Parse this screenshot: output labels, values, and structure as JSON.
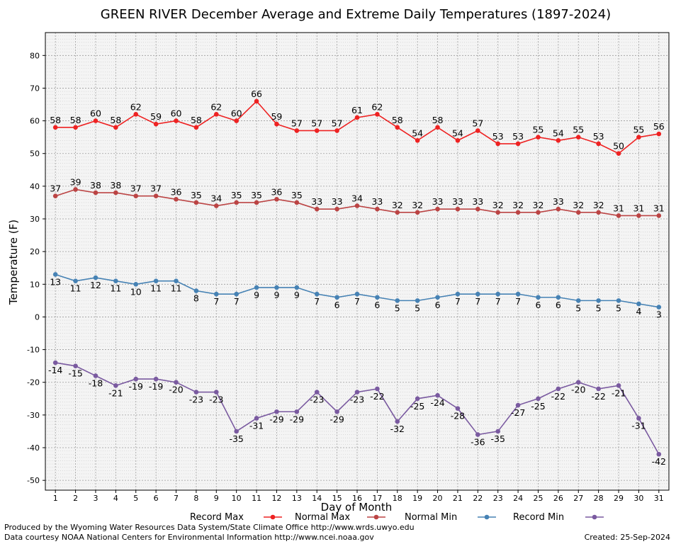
{
  "chart_data": {
    "type": "line",
    "title": "GREEN RIVER December Average and Extreme Daily Temperatures (1897-2024)",
    "xlabel": "Day of Month",
    "ylabel": "Temperature (F)",
    "ylim": [
      -53,
      87
    ],
    "yticks": [
      -50,
      -40,
      -30,
      -20,
      -10,
      0,
      10,
      20,
      30,
      40,
      50,
      60,
      70,
      80
    ],
    "x": [
      1,
      2,
      3,
      4,
      5,
      6,
      7,
      8,
      9,
      10,
      11,
      12,
      13,
      14,
      15,
      16,
      17,
      18,
      19,
      20,
      21,
      22,
      23,
      24,
      25,
      26,
      27,
      28,
      29,
      30,
      31
    ],
    "grid": true,
    "legend_position": "bottom",
    "series": [
      {
        "name": "Record Max",
        "color": "#ee2222",
        "label_pos": "above",
        "values": [
          58,
          58,
          60,
          58,
          62,
          59,
          60,
          58,
          62,
          60,
          66,
          59,
          57,
          57,
          57,
          61,
          62,
          58,
          54,
          58,
          54,
          57,
          53,
          53,
          55,
          54,
          55,
          53,
          50,
          55,
          56
        ]
      },
      {
        "name": "Normal Max",
        "color": "#bb4444",
        "label_pos": "above",
        "values": [
          37,
          39,
          38,
          38,
          37,
          37,
          36,
          35,
          34,
          35,
          35,
          36,
          35,
          33,
          33,
          34,
          33,
          32,
          32,
          33,
          33,
          33,
          32,
          32,
          32,
          33,
          32,
          32,
          31,
          31,
          31
        ]
      },
      {
        "name": "Normal Min",
        "color": "#4682b4",
        "label_pos": "below",
        "values": [
          13,
          11,
          12,
          11,
          10,
          11,
          11,
          8,
          7,
          7,
          9,
          9,
          9,
          7,
          6,
          7,
          6,
          5,
          5,
          6,
          7,
          7,
          7,
          7,
          6,
          6,
          5,
          5,
          5,
          4,
          3
        ]
      },
      {
        "name": "Record Min",
        "color": "#7a5aa0",
        "label_pos": "below",
        "values": [
          -14,
          -15,
          -18,
          -21,
          -19,
          -19,
          -20,
          -23,
          -23,
          -35,
          -31,
          -29,
          -29,
          -23,
          -29,
          -23,
          -22,
          -32,
          -25,
          -24,
          -28,
          -36,
          -35,
          -27,
          -25,
          -22,
          -20,
          -22,
          -21,
          -31,
          -42
        ]
      }
    ]
  },
  "footer": {
    "line1": "Produced by the Wyoming Water Resources Data System/State Climate Office http://www.wrds.uwyo.edu",
    "line2": "Data courtesy NOAA National Centers for Environmental Information http://www.ncei.noaa.gov",
    "created": "Created:  25-Sep-2024"
  }
}
